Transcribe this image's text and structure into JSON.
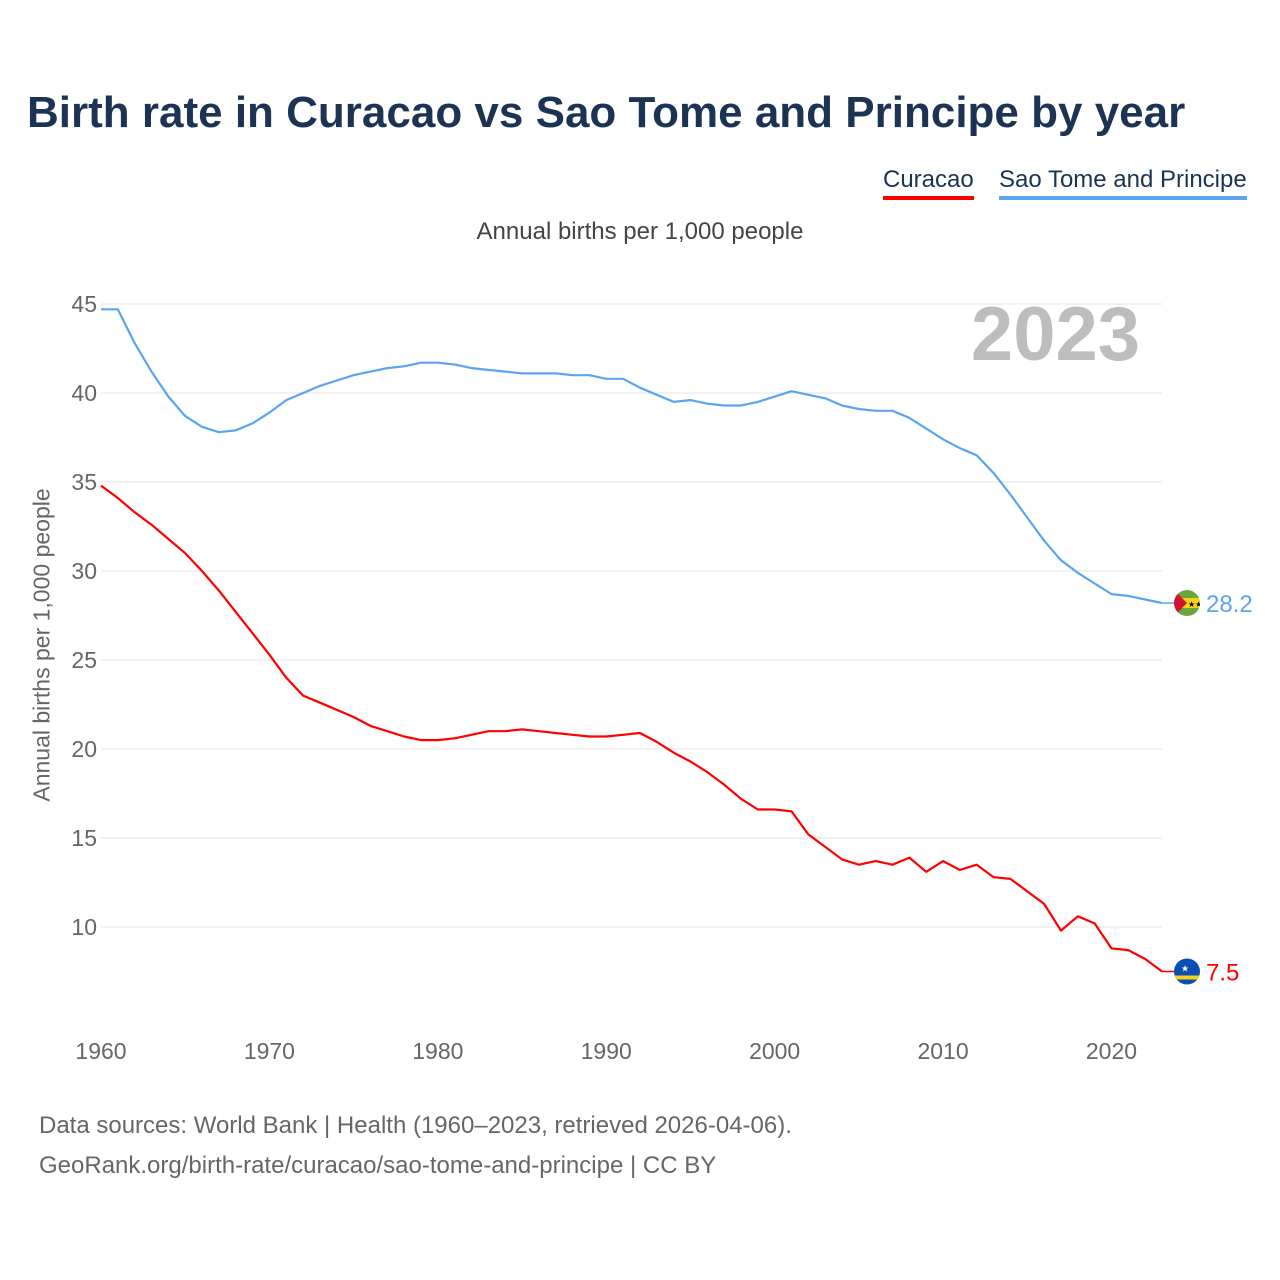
{
  "chart_data": {
    "type": "line",
    "title": "Birth rate in Curacao vs Sao Tome and Principe by year",
    "subtitle": "Annual births per 1,000 people",
    "xlabel": "",
    "ylabel": "Annual births per 1,000 people",
    "year_label": "2023",
    "xlim": [
      1960,
      2023
    ],
    "ylim": [
      5,
      45
    ],
    "x_ticks": [
      "1960",
      "1970",
      "1980",
      "1990",
      "2000",
      "2010",
      "2020"
    ],
    "y_ticks": [
      "10",
      "15",
      "20",
      "25",
      "30",
      "35",
      "40",
      "45"
    ],
    "legend_position": "top-right",
    "x": [
      1960,
      1961,
      1962,
      1963,
      1964,
      1965,
      1966,
      1967,
      1968,
      1969,
      1970,
      1971,
      1972,
      1973,
      1974,
      1975,
      1976,
      1977,
      1978,
      1979,
      1980,
      1981,
      1982,
      1983,
      1984,
      1985,
      1986,
      1987,
      1988,
      1989,
      1990,
      1991,
      1992,
      1993,
      1994,
      1995,
      1996,
      1997,
      1998,
      1999,
      2000,
      2001,
      2002,
      2003,
      2004,
      2005,
      2006,
      2007,
      2008,
      2009,
      2010,
      2011,
      2012,
      2013,
      2014,
      2015,
      2016,
      2017,
      2018,
      2019,
      2020,
      2021,
      2022,
      2023
    ],
    "series": [
      {
        "name": "Curacao",
        "color": "#ff0000",
        "end_label": "7.5",
        "values": [
          34.8,
          34.1,
          33.3,
          32.6,
          31.8,
          31.0,
          30.0,
          28.9,
          27.7,
          26.5,
          25.3,
          24.0,
          23.0,
          22.6,
          22.2,
          21.8,
          21.3,
          21.0,
          20.7,
          20.5,
          20.5,
          20.6,
          20.8,
          21.0,
          21.0,
          21.1,
          21.0,
          20.9,
          20.8,
          20.7,
          20.7,
          20.8,
          20.9,
          20.4,
          19.8,
          19.3,
          18.7,
          18.0,
          17.2,
          16.6,
          16.6,
          16.5,
          15.2,
          14.5,
          13.8,
          13.5,
          13.7,
          13.5,
          13.9,
          13.1,
          13.7,
          13.2,
          13.5,
          12.8,
          12.7,
          12.0,
          11.3,
          9.8,
          10.6,
          10.2,
          8.8,
          8.7,
          8.2,
          7.5
        ]
      },
      {
        "name": "Sao Tome and Principe",
        "color": "#5aa5ee",
        "end_label": "28.2",
        "values": [
          44.7,
          44.7,
          42.8,
          41.2,
          39.8,
          38.7,
          38.1,
          37.8,
          37.9,
          38.3,
          38.9,
          39.6,
          40.0,
          40.4,
          40.7,
          41.0,
          41.2,
          41.4,
          41.5,
          41.7,
          41.7,
          41.6,
          41.4,
          41.3,
          41.2,
          41.1,
          41.1,
          41.1,
          41.0,
          41.0,
          40.8,
          40.8,
          40.3,
          39.9,
          39.5,
          39.6,
          39.4,
          39.3,
          39.3,
          39.5,
          39.8,
          40.1,
          39.9,
          39.7,
          39.3,
          39.1,
          39.0,
          39.0,
          38.6,
          38.0,
          37.4,
          36.9,
          36.5,
          35.5,
          34.3,
          33.0,
          31.7,
          30.6,
          29.9,
          29.3,
          28.7,
          28.6,
          28.4,
          28.2
        ]
      }
    ]
  },
  "footer": {
    "line1": "Data sources: World Bank | Health (1960–2023, retrieved 2026-04-06).",
    "line2": "GeoRank.org/birth-rate/curacao/sao-tome-and-principe | CC BY"
  }
}
